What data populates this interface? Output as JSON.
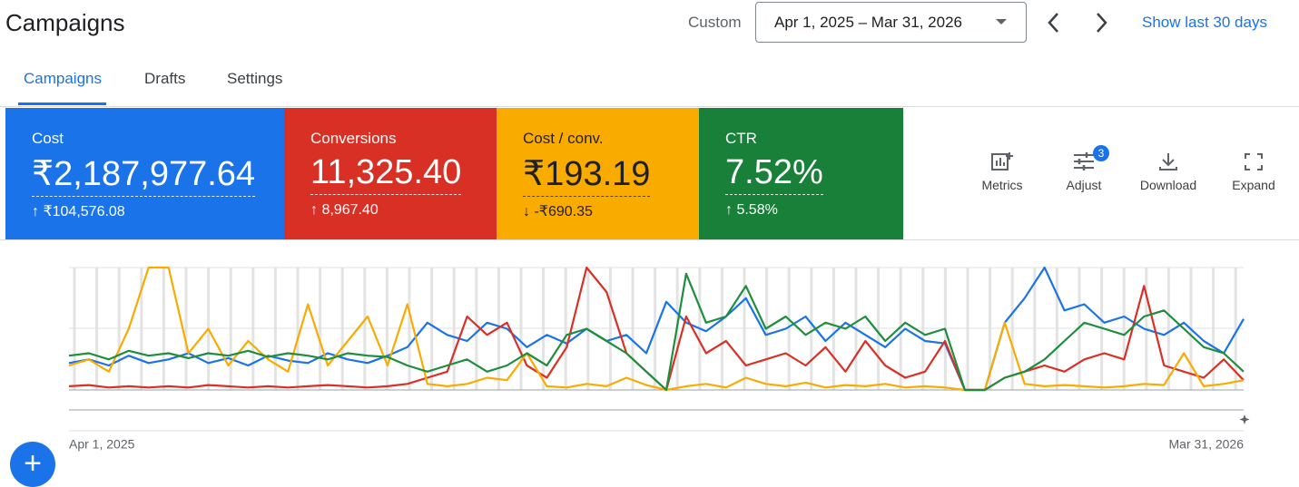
{
  "header": {
    "title": "Campaigns",
    "range_label": "Custom",
    "date_range": "Apr 1, 2025 – Mar 31, 2026",
    "show_last": "Show last 30 days"
  },
  "tabs": [
    "Campaigns",
    "Drafts",
    "Settings"
  ],
  "metrics": [
    {
      "label": "Cost",
      "value": "₹2,187,977.64",
      "change": "↑ ₹104,576.08"
    },
    {
      "label": "Conversions",
      "value": "11,325.40",
      "change": "↑ 8,967.40"
    },
    {
      "label": "Cost / conv.",
      "value": "₹193.19",
      "change": "↓ -₹690.35"
    },
    {
      "label": "CTR",
      "value": "7.52%",
      "change": "↑ 5.58%"
    }
  ],
  "tools": [
    "Metrics",
    "Adjust",
    "Download",
    "Expand"
  ],
  "adjust_badge": 3,
  "fab": "+",
  "chart_data": {
    "type": "line",
    "axis_labels": [
      "Apr 1, 2025",
      "Mar 31, 2026"
    ],
    "series": [
      {
        "name": "Cost",
        "color": "#1a73e8",
        "values": [
          22,
          25,
          20,
          28,
          22,
          25,
          30,
          22,
          26,
          20,
          28,
          24,
          22,
          30,
          25,
          22,
          28,
          35,
          55,
          45,
          40,
          55,
          50,
          35,
          45,
          38,
          50,
          40,
          45,
          30,
          72,
          55,
          48,
          60,
          75,
          45,
          50,
          60,
          40,
          55,
          45,
          35,
          50,
          40,
          38,
          0,
          0,
          55,
          75,
          100,
          65,
          70,
          55,
          60,
          50,
          45,
          55,
          40,
          30,
          58
        ]
      },
      {
        "name": "Conversions",
        "color": "#d93025",
        "values": [
          3,
          4,
          2,
          3,
          2,
          3,
          2,
          4,
          3,
          2,
          3,
          2,
          3,
          4,
          3,
          2,
          3,
          5,
          10,
          15,
          60,
          45,
          55,
          20,
          10,
          35,
          100,
          80,
          30,
          15,
          0,
          60,
          30,
          40,
          20,
          25,
          30,
          20,
          35,
          15,
          40,
          20,
          10,
          15,
          40,
          0,
          0,
          10,
          15,
          20,
          15,
          25,
          30,
          25,
          85,
          20,
          15,
          10,
          25,
          8
        ]
      },
      {
        "name": "Cost / conv.",
        "color": "#f9ab00",
        "values": [
          20,
          25,
          15,
          50,
          100,
          100,
          30,
          50,
          20,
          40,
          25,
          15,
          70,
          20,
          40,
          60,
          20,
          70,
          5,
          3,
          5,
          10,
          8,
          30,
          3,
          2,
          5,
          3,
          10,
          4,
          0,
          3,
          5,
          2,
          10,
          5,
          3,
          6,
          2,
          4,
          3,
          5,
          2,
          3,
          2,
          0,
          0,
          55,
          5,
          3,
          4,
          3,
          2,
          3,
          5,
          4,
          30,
          3,
          5,
          8
        ]
      },
      {
        "name": "CTR",
        "color": "#1e8e3e",
        "values": [
          28,
          30,
          25,
          32,
          28,
          30,
          26,
          30,
          28,
          32,
          27,
          30,
          28,
          25,
          30,
          28,
          27,
          20,
          15,
          20,
          25,
          15,
          20,
          30,
          20,
          45,
          50,
          40,
          30,
          15,
          0,
          95,
          55,
          60,
          85,
          50,
          60,
          45,
          55,
          50,
          60,
          40,
          55,
          45,
          50,
          0,
          0,
          10,
          15,
          25,
          40,
          55,
          50,
          45,
          60,
          65,
          50,
          35,
          30,
          15
        ]
      }
    ]
  }
}
